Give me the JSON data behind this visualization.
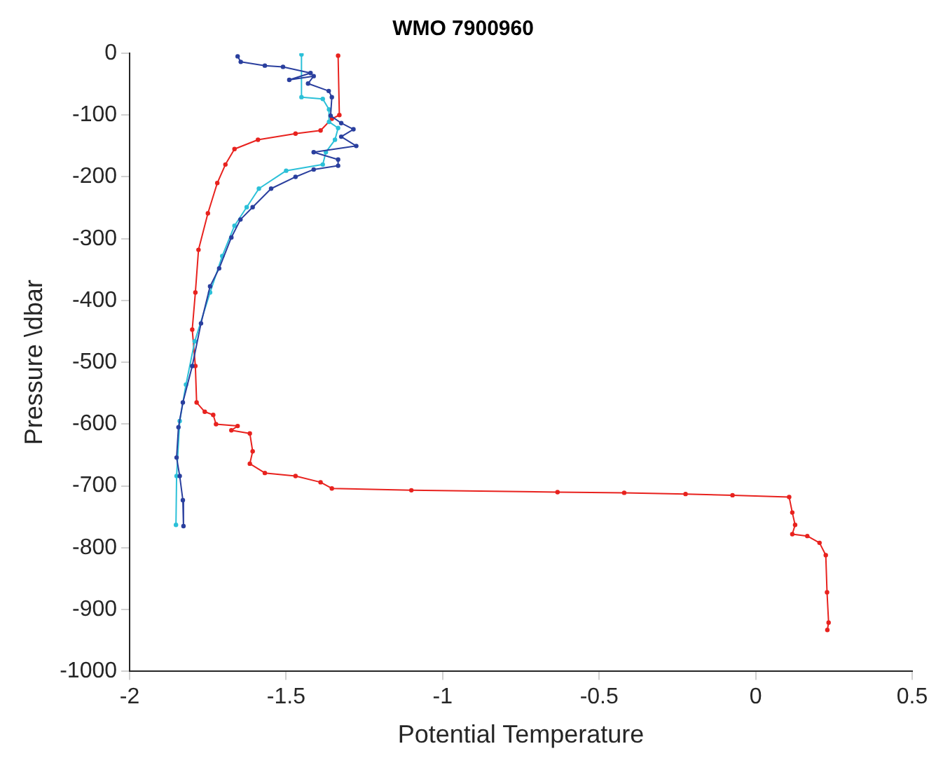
{
  "chart_data": {
    "type": "line",
    "title": "WMO 7900960",
    "xlabel": "Potential Temperature",
    "ylabel": "Pressure \\dbar",
    "xlim": [
      -2,
      0.5
    ],
    "xticks": [
      -2,
      -1.5,
      -1,
      -0.5,
      0,
      0.5
    ],
    "ylim": [
      -1000,
      0
    ],
    "yticks": [
      -1000,
      -900,
      -800,
      -700,
      -600,
      -500,
      -400,
      -300,
      -200,
      -100,
      0
    ],
    "grid": false,
    "legend": false,
    "marker": "circle",
    "line_style": "solid",
    "series": [
      {
        "color": "#2a3f9e",
        "x": [
          -1.655,
          -1.645,
          -1.568,
          -1.51,
          -1.422,
          -1.49,
          -1.412,
          -1.43,
          -1.364,
          -1.354,
          -1.358,
          -1.324,
          -1.285,
          -1.324,
          -1.276,
          -1.412,
          -1.334,
          -1.334,
          -1.412,
          -1.47,
          -1.548,
          -1.607,
          -1.646,
          -1.675,
          -1.714,
          -1.743,
          -1.772,
          -1.8,
          -1.83,
          -1.844,
          -1.85,
          -1.84,
          -1.83,
          -1.828
        ],
        "values": [
          -5,
          -14,
          -20,
          -22,
          -32,
          -43,
          -37,
          -49,
          -61,
          -71,
          -101,
          -113,
          -123,
          -135,
          -150,
          -160,
          -172,
          -182,
          -188,
          -200,
          -219,
          -249,
          -269,
          -298,
          -348,
          -377,
          -437,
          -506,
          -565,
          -605,
          -654,
          -684,
          -723,
          -765
        ]
      },
      {
        "color": "#2bc0d8",
        "x": [
          -1.451,
          -1.451,
          -1.383,
          -1.363,
          -1.363,
          -1.334,
          -1.344,
          -1.373,
          -1.383,
          -1.5,
          -1.587,
          -1.626,
          -1.665,
          -1.704,
          -1.743,
          -1.792,
          -1.82,
          -1.84,
          -1.85,
          -1.852
        ],
        "values": [
          -2,
          -71,
          -74,
          -91,
          -111,
          -121,
          -140,
          -160,
          -180,
          -190,
          -219,
          -249,
          -279,
          -328,
          -387,
          -466,
          -536,
          -595,
          -684,
          -763
        ]
      },
      {
        "color": "#e8221e",
        "x": [
          -1.334,
          -1.33,
          -1.354,
          -1.39,
          -1.47,
          -1.59,
          -1.665,
          -1.694,
          -1.72,
          -1.75,
          -1.78,
          -1.79,
          -1.8,
          -1.79,
          -1.786,
          -1.76,
          -1.733,
          -1.724,
          -1.655,
          -1.675,
          -1.616,
          -1.607,
          -1.616,
          -1.568,
          -1.47,
          -1.39,
          -1.354,
          -1.1,
          -0.633,
          -0.42,
          -0.224,
          -0.074,
          0.107,
          0.117,
          0.126,
          0.117,
          0.165,
          0.204,
          0.224,
          0.228,
          0.233,
          0.229
        ],
        "values": [
          -4,
          -100,
          -106,
          -125,
          -130,
          -140,
          -155,
          -180,
          -210,
          -259,
          -318,
          -387,
          -447,
          -506,
          -565,
          -580,
          -585,
          -600,
          -603,
          -610,
          -615,
          -644,
          -664,
          -679,
          -684,
          -694,
          -704,
          -707,
          -710,
          -711,
          -713,
          -715,
          -718,
          -743,
          -763,
          -778,
          -781,
          -792,
          -812,
          -872,
          -921,
          -933
        ]
      }
    ]
  }
}
